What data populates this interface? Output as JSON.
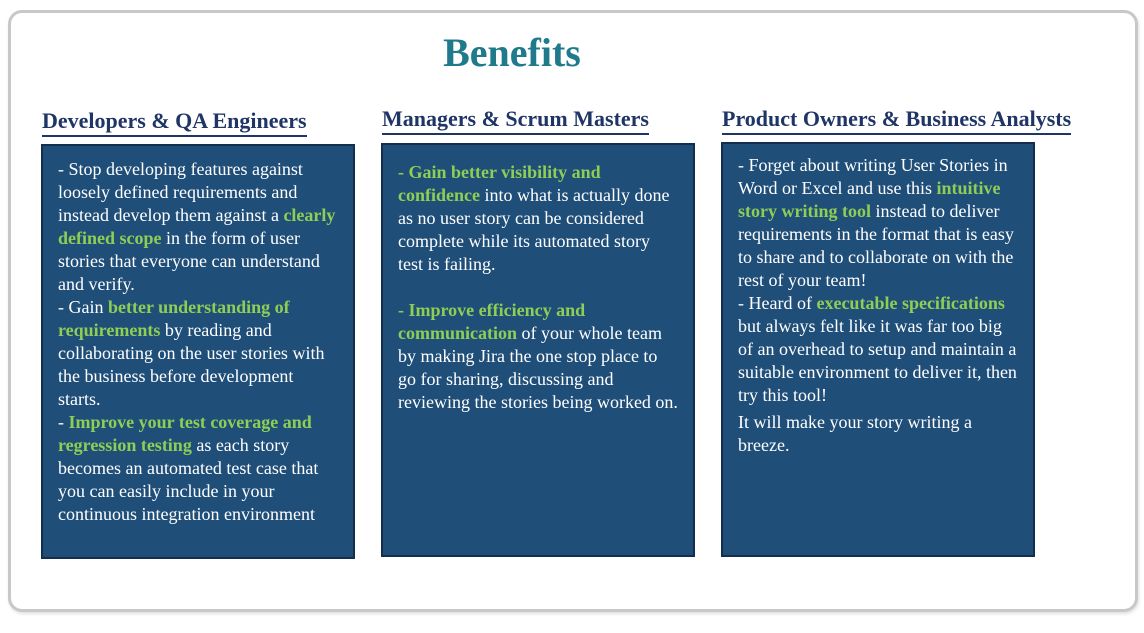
{
  "title": "Benefits",
  "columns": [
    {
      "heading": "Developers & QA Engineers",
      "paragraphs": [
        [
          "- Stop developing features against loosely defined requirements and instead develop them against a ",
          {
            "hl": "clearly defined scope"
          },
          " in the form of user stories that everyone can understand and verify."
        ],
        [
          "- Gain ",
          {
            "hl": "better understanding of requirements"
          },
          " by reading and collaborating on the user stories with the business before development starts."
        ],
        [
          "- ",
          {
            "hl": "Improve your test coverage and regression testing"
          },
          " as each story becomes an automated test case that you can easily include in your continuous integration environment"
        ]
      ]
    },
    {
      "heading": "Managers & Scrum Masters",
      "paragraphs": [
        [
          {
            "hl": "- Gain better visibility and confidence"
          },
          " into what is actually done as no user story can be considered complete while its automated story test is failing."
        ],
        [],
        [
          {
            "hl": "- Improve efficiency and communication"
          },
          " of your whole team by making Jira the one stop place to go for sharing, discussing and reviewing the stories being worked on."
        ]
      ]
    },
    {
      "heading": "Product Owners & Business Analysts",
      "paragraphs": [
        [
          "- Forget about writing User Stories in Word or Excel and use this ",
          {
            "hl": "intuitive story writing tool"
          },
          " instead to deliver requirements in the format that is easy to share and to collaborate on with the rest of your team!"
        ],
        [
          "- Heard of ",
          {
            "hl": "executable specifications"
          },
          " but always felt like it was far too big of an overhead to setup and maintain a suitable environment to deliver it, then try this tool!"
        ],
        [
          "It will make your story writing a breeze."
        ]
      ]
    }
  ],
  "colors": {
    "title": "#1f7a8c",
    "heading": "#1f3566",
    "box": "#1f4e79",
    "highlight": "#8fce55",
    "text": "#ffffff"
  }
}
